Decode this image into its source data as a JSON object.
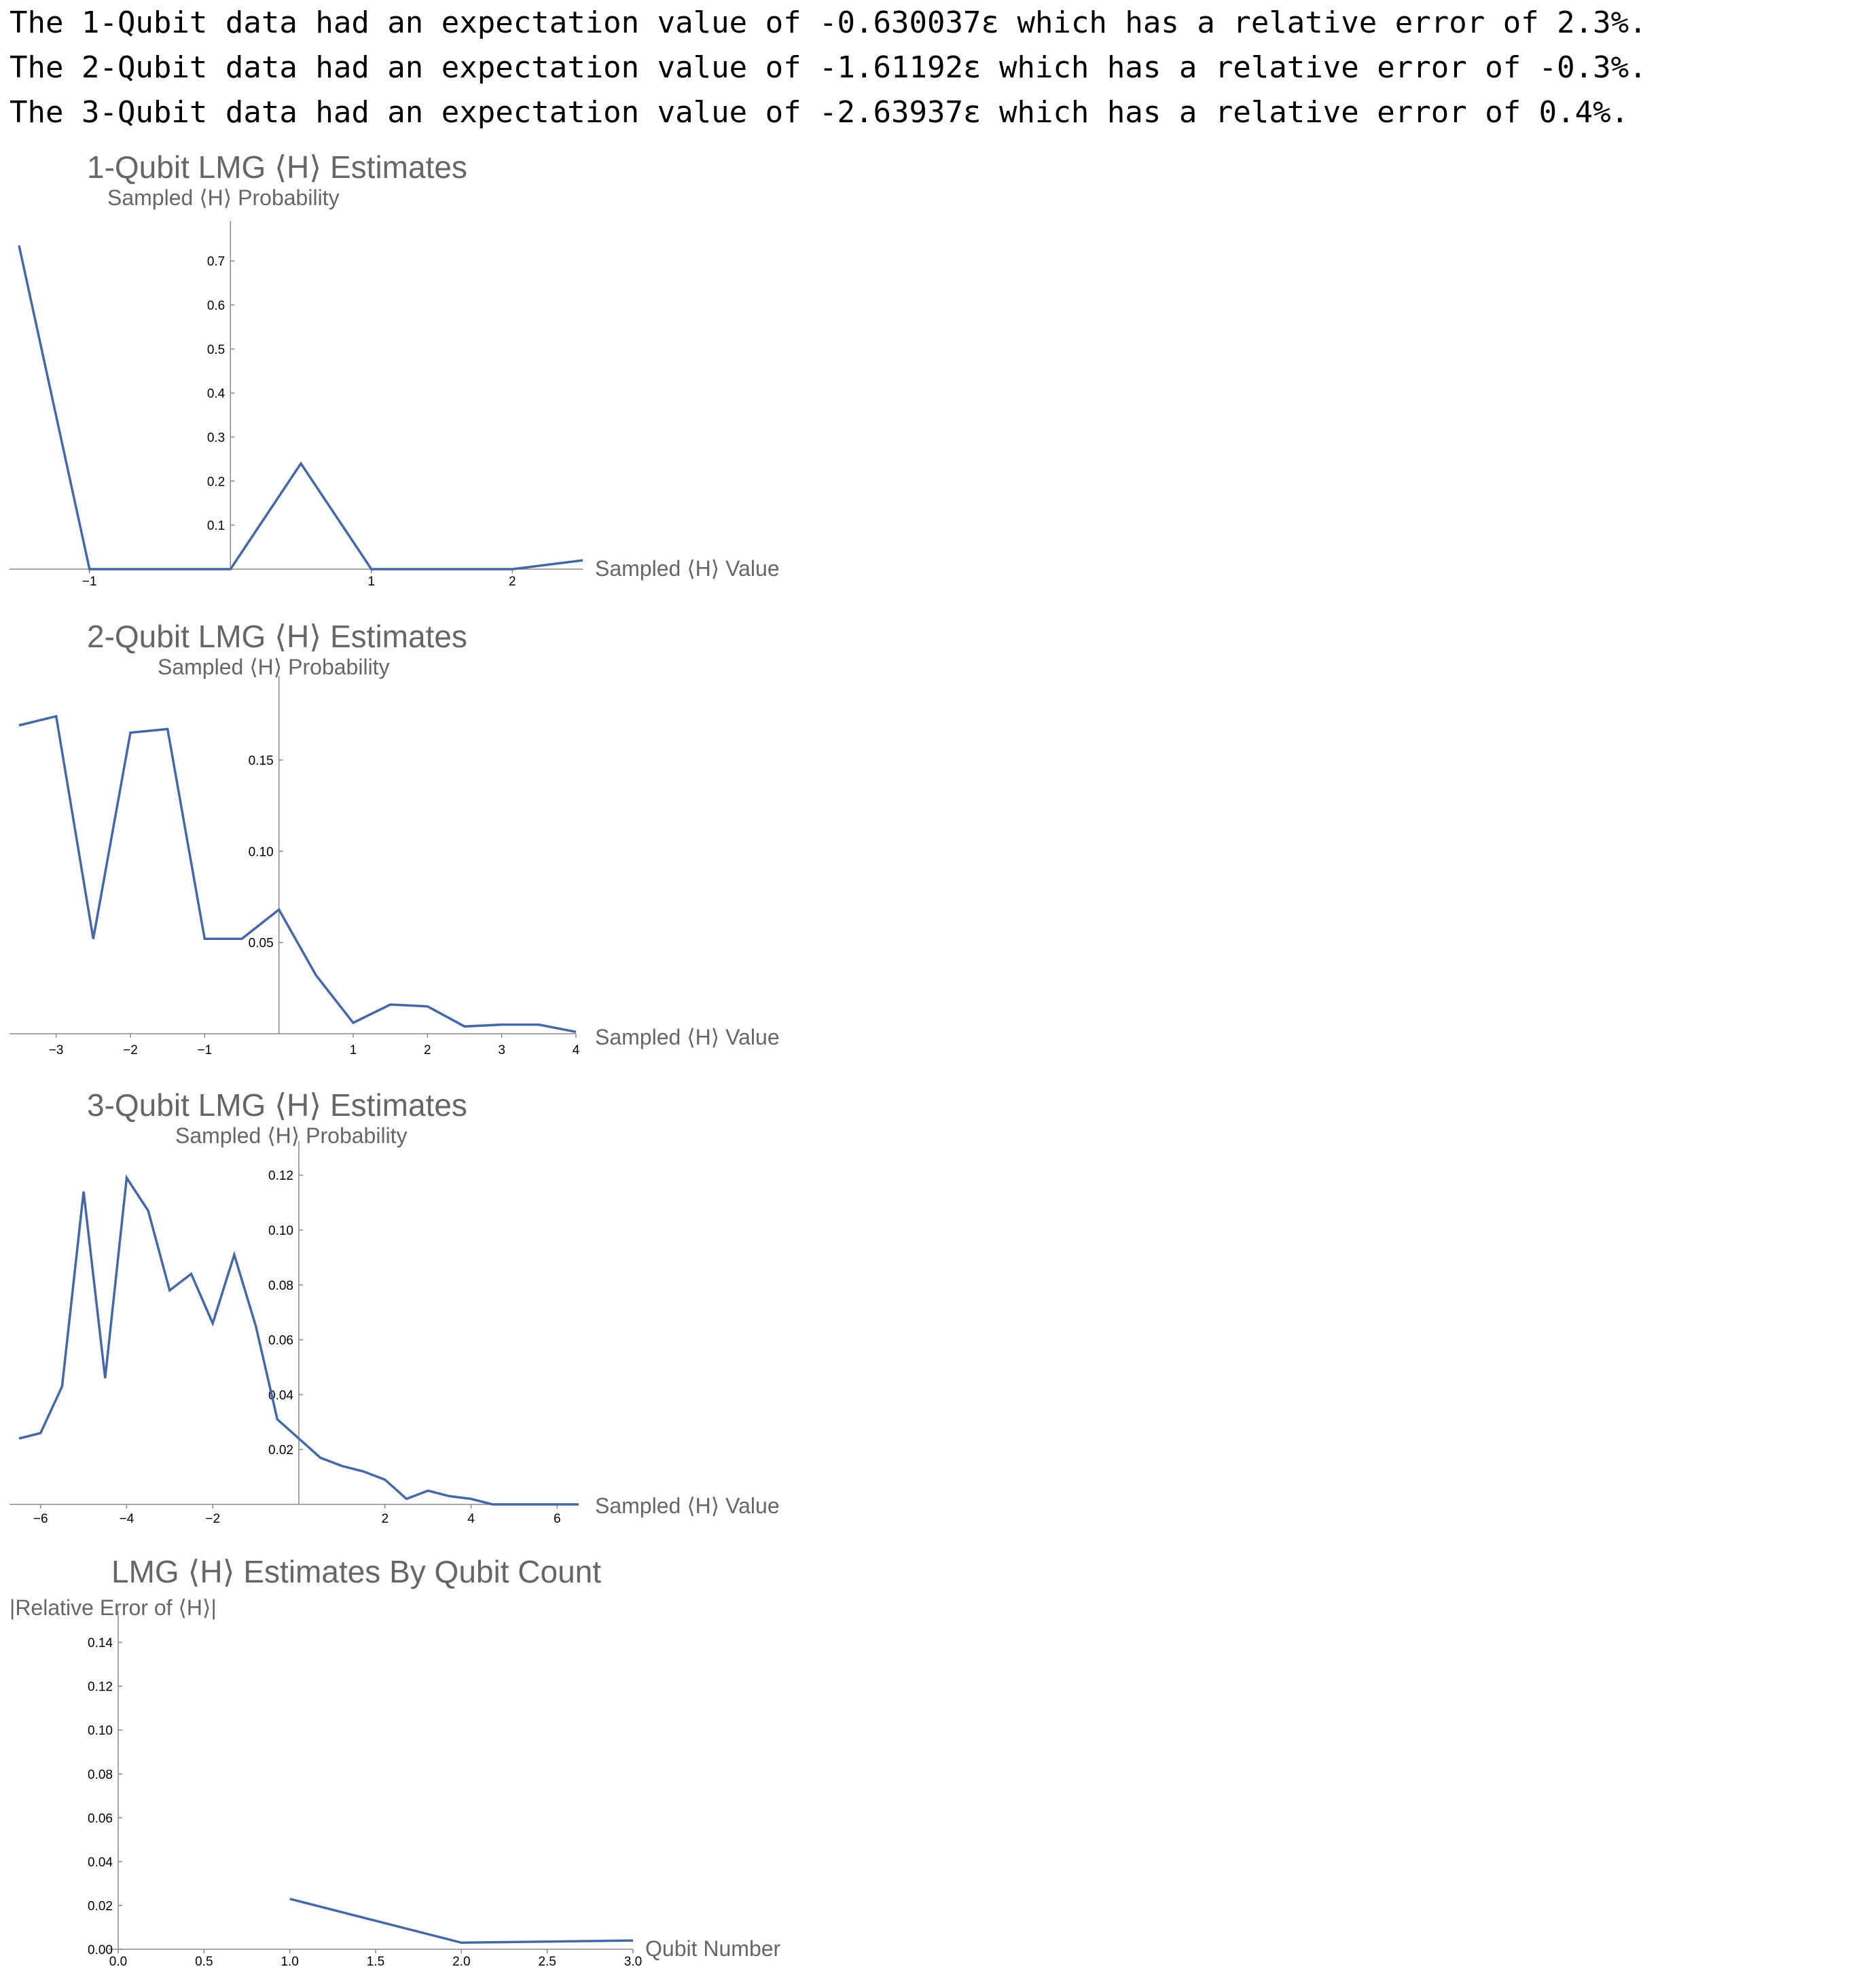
{
  "output_lines": [
    "The 1-Qubit data had an expectation value of -0.630037ε which has a relative error of 2.3%.",
    "The 2-Qubit data had an expectation value of -1.61192ε which has a relative error of -0.3%.",
    "The 3-Qubit data had an expectation value of -2.63937ε which has a relative error of 0.4%."
  ],
  "colors": {
    "series": "#4467a8",
    "axis": "#888888",
    "title": "#666666"
  },
  "chart_data": [
    {
      "type": "line",
      "title": "1-Qubit LMG ⟨H⟩ Estimates",
      "xlabel": "Sampled ⟨H⟩ Value",
      "ylabel": "Sampled ⟨H⟩ Probability",
      "xlim": [
        -1.5,
        2.5
      ],
      "ylim": [
        0,
        0.745
      ],
      "xticks": [
        "-1",
        "1",
        "2"
      ],
      "yticks": [
        "0.1",
        "0.2",
        "0.3",
        "0.4",
        "0.5",
        "0.6",
        "0.7"
      ],
      "x": [
        -1.5,
        -1.0,
        -0.5,
        0.0,
        0.5,
        1.0,
        1.5,
        2.0,
        2.5
      ],
      "y": [
        0.735,
        0.0,
        0.0,
        0.0,
        0.24,
        0.0,
        0.0,
        0.0,
        0.02
      ]
    },
    {
      "type": "line",
      "title": "2-Qubit LMG ⟨H⟩ Estimates",
      "xlabel": "Sampled ⟨H⟩ Value",
      "ylabel": "Sampled ⟨H⟩ Probability",
      "xlim": [
        -3.5,
        4.0
      ],
      "ylim": [
        0,
        0.185
      ],
      "xticks": [
        "-3",
        "-2",
        "-1",
        "1",
        "2",
        "3",
        "4"
      ],
      "yticks": [
        "0.05",
        "0.10",
        "0.15"
      ],
      "x": [
        -3.5,
        -3.0,
        -2.5,
        -2.0,
        -1.5,
        -1.0,
        -0.5,
        0.0,
        0.5,
        1.0,
        1.5,
        2.0,
        2.5,
        3.0,
        3.5,
        4.0
      ],
      "y": [
        0.169,
        0.174,
        0.052,
        0.165,
        0.167,
        0.052,
        0.052,
        0.068,
        0.032,
        0.006,
        0.016,
        0.015,
        0.004,
        0.005,
        0.005,
        0.001
      ]
    },
    {
      "type": "line",
      "title": "3-Qubit LMG ⟨H⟩ Estimates",
      "xlabel": "Sampled ⟨H⟩ Value",
      "ylabel": "Sampled ⟨H⟩ Probability",
      "xlim": [
        -6.5,
        6.5
      ],
      "ylim": [
        0,
        0.125
      ],
      "xticks": [
        "-6",
        "-4",
        "-2",
        "2",
        "4",
        "6"
      ],
      "yticks": [
        "0.02",
        "0.04",
        "0.06",
        "0.08",
        "0.10",
        "0.12"
      ],
      "x": [
        -6.5,
        -6.0,
        -5.5,
        -5.0,
        -4.5,
        -4.0,
        -3.5,
        -3.0,
        -2.5,
        -2.0,
        -1.5,
        -1.0,
        -0.5,
        0.0,
        0.5,
        1.0,
        1.5,
        2.0,
        2.5,
        3.0,
        3.5,
        4.0,
        4.5,
        5.0,
        5.5,
        6.0,
        6.5
      ],
      "y": [
        0.024,
        0.026,
        0.043,
        0.114,
        0.046,
        0.119,
        0.107,
        0.078,
        0.084,
        0.066,
        0.091,
        0.065,
        0.031,
        0.024,
        0.017,
        0.014,
        0.012,
        0.009,
        0.002,
        0.005,
        0.003,
        0.002,
        0.0,
        0.0,
        0.0,
        0.0,
        0.0
      ]
    },
    {
      "type": "line",
      "title": "LMG ⟨H⟩ Estimates By Qubit Count",
      "xlabel": "Qubit Number",
      "ylabel": "|Relative Error of ⟨H⟩|",
      "xlim": [
        0,
        3.0
      ],
      "ylim": [
        0,
        0.145
      ],
      "xticks": [
        "0.0",
        "0.5",
        "1.0",
        "1.5",
        "2.0",
        "2.5",
        "3.0"
      ],
      "yticks": [
        "0.00",
        "0.02",
        "0.04",
        "0.06",
        "0.08",
        "0.10",
        "0.12",
        "0.14"
      ],
      "x": [
        1,
        2,
        3
      ],
      "y": [
        0.023,
        0.003,
        0.004
      ]
    }
  ]
}
